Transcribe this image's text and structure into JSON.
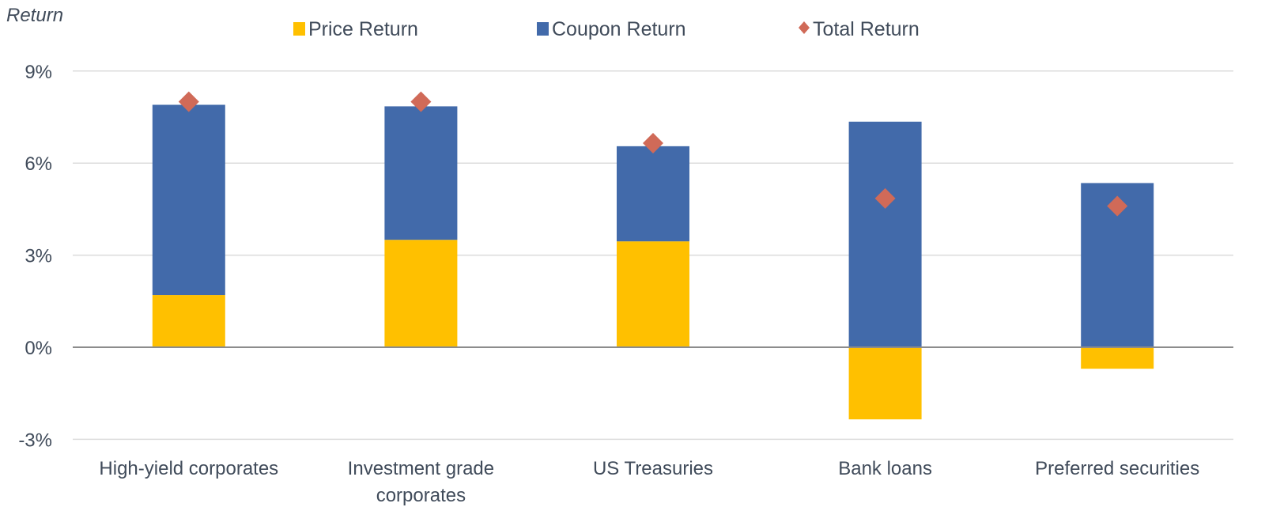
{
  "chart_data": {
    "type": "bar",
    "stacked": true,
    "ylabel": "Return",
    "ylim": [
      -3,
      9
    ],
    "yticks": [
      "9%",
      "6%",
      "3%",
      "0%",
      "-3%"
    ],
    "ytick_values": [
      9,
      6,
      3,
      0,
      -3
    ],
    "grid": true,
    "legend_position": "top",
    "categories": [
      [
        "High-yield corporates"
      ],
      [
        "Investment grade",
        "corporates"
      ],
      [
        "US Treasuries"
      ],
      [
        "Bank loans"
      ],
      [
        "Preferred securities"
      ]
    ],
    "series": [
      {
        "name": "Price Return",
        "type": "bar",
        "color": "#FFC000",
        "values": [
          1.7,
          3.5,
          3.45,
          -2.35,
          -0.7
        ]
      },
      {
        "name": "Coupon Return",
        "type": "bar",
        "color": "#426AAA",
        "values": [
          6.2,
          4.35,
          3.1,
          7.35,
          5.35
        ]
      },
      {
        "name": "Total Return",
        "type": "marker",
        "marker": "diamond",
        "color": "#D06A58",
        "values": [
          8.0,
          8.0,
          6.65,
          4.85,
          4.6
        ]
      }
    ]
  }
}
